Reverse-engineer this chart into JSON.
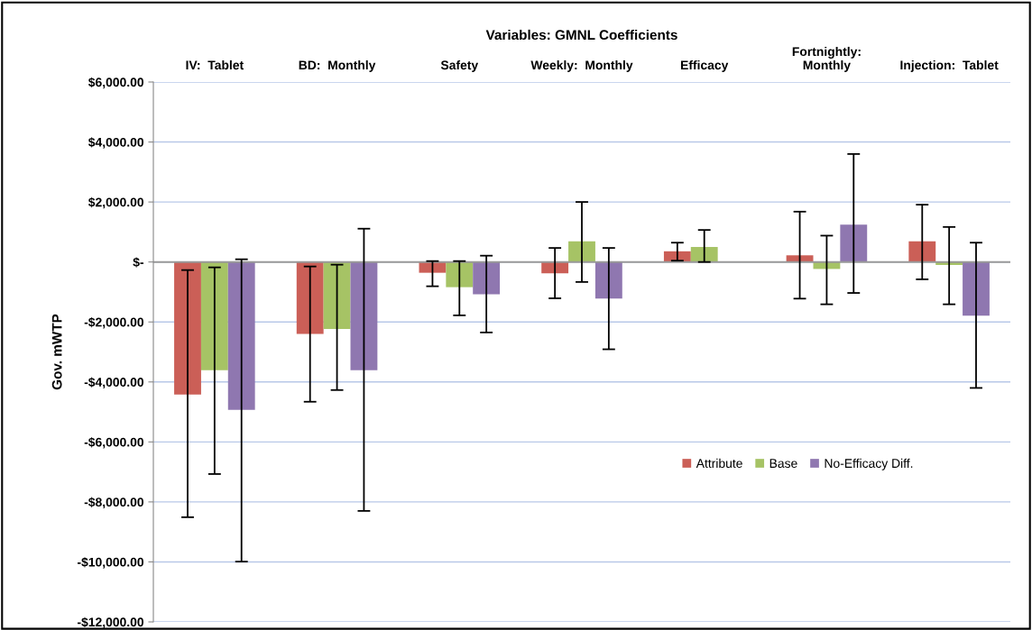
{
  "chart_data": {
    "type": "bar",
    "title": "Variables: GMNL Coefficients",
    "ylabel": "Gov. mWTP",
    "categories": [
      "IV:  Tablet",
      "BD:  Monthly",
      "Safety",
      "Weekly:  Monthly",
      "Efficacy",
      "Fortnightly:\nMonthly",
      "Injection:  Tablet"
    ],
    "series": [
      {
        "name": "Attribute",
        "color": "#cb5f57",
        "values": [
          -4420,
          -2400,
          -360,
          -378,
          356,
          222,
          689
        ],
        "errors": [
          [
            -8510,
            -270
          ],
          [
            -4660,
            -150
          ],
          [
            -810,
            30
          ],
          [
            -1211,
            467
          ],
          [
            44,
            644
          ],
          [
            -1222,
            1678
          ],
          [
            -578,
            1911
          ]
        ]
      },
      {
        "name": "Base",
        "color": "#a6c365",
        "values": [
          -3610,
          -2230,
          -840,
          689,
          500,
          -233,
          -100
        ],
        "errors": [
          [
            -7070,
            -180
          ],
          [
            -4270,
            -90
          ],
          [
            -1780,
            30
          ],
          [
            -667,
            2000
          ],
          [
            0,
            1067
          ],
          [
            -1411,
            878
          ],
          [
            -1411,
            1167
          ]
        ]
      },
      {
        "name": "No-Efficacy Diff.",
        "color": "#8f77b0",
        "values": [
          -4930,
          -3610,
          -1080,
          -1222,
          null,
          1244,
          -1789
        ],
        "errors": [
          [
            -9990,
            90
          ],
          [
            -8300,
            1110
          ],
          [
            -2350,
            210
          ],
          [
            -2911,
            467
          ],
          null,
          [
            -1033,
            3600
          ],
          [
            -4200,
            644
          ]
        ]
      }
    ],
    "ylim": [
      -12000,
      6000
    ],
    "yticks": [
      {
        "value": -12000,
        "label": "-$12,000.00"
      },
      {
        "value": -10000,
        "label": "-$10,000.00"
      },
      {
        "value": -8000,
        "label": "-$8,000.00"
      },
      {
        "value": -6000,
        "label": "-$6,000.00"
      },
      {
        "value": -4000,
        "label": "-$4,000.00"
      },
      {
        "value": -2000,
        "label": "-$2,000.00"
      },
      {
        "value": 0,
        "label": "$-"
      },
      {
        "value": 2000,
        "label": "$2,000.00"
      },
      {
        "value": 4000,
        "label": "$4,000.00"
      },
      {
        "value": 6000,
        "label": "$6,000.00"
      }
    ],
    "grid": "y",
    "legend": "bottom right"
  }
}
